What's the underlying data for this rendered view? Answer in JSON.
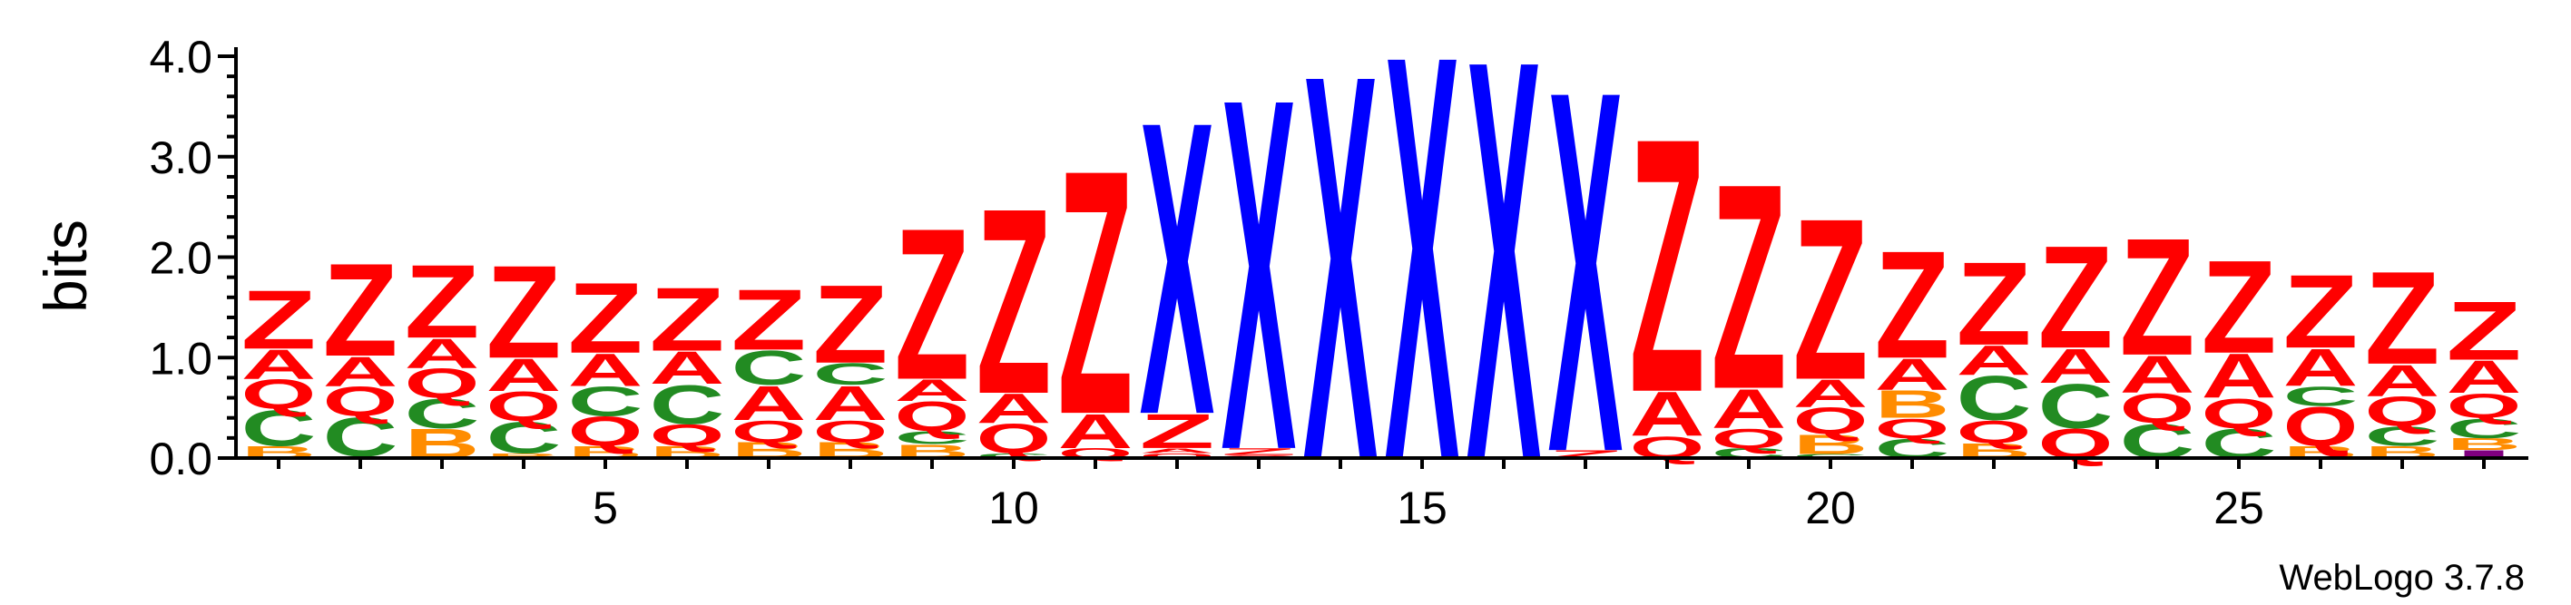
{
  "chart_data": {
    "type": "sequence-logo",
    "ylabel": "bits",
    "ylim": [
      0,
      4.0
    ],
    "yticks": [
      "0.0",
      "1.0",
      "2.0",
      "3.0",
      "4.0"
    ],
    "xticks": [
      5,
      10,
      15,
      20,
      25
    ],
    "positions": 28,
    "credit": "WebLogo 3.7.8",
    "colors": {
      "Z": "#ff0000",
      "A": "#ff0000",
      "Q": "#ff0000",
      "X": "#0000ff",
      "C": "#228b22",
      "B": "#ff8c00",
      "I": "#800080"
    },
    "stacks": [
      [
        [
          "B",
          0.12
        ],
        [
          "C",
          0.37
        ],
        [
          "Q",
          0.3
        ],
        [
          "A",
          0.3
        ],
        [
          "Z",
          0.6
        ]
      ],
      [
        [
          "B",
          0.02
        ],
        [
          "C",
          0.4
        ],
        [
          "Q",
          0.3
        ],
        [
          "A",
          0.3
        ],
        [
          "Z",
          0.95
        ]
      ],
      [
        [
          "B",
          0.3
        ],
        [
          "C",
          0.3
        ],
        [
          "Q",
          0.3
        ],
        [
          "A",
          0.3
        ],
        [
          "Z",
          0.75
        ]
      ],
      [
        [
          "B",
          0.05
        ],
        [
          "C",
          0.32
        ],
        [
          "Q",
          0.3
        ],
        [
          "A",
          0.33
        ],
        [
          "Z",
          0.95
        ]
      ],
      [
        [
          "B",
          0.12
        ],
        [
          "Q",
          0.3
        ],
        [
          "C",
          0.3
        ],
        [
          "A",
          0.33
        ],
        [
          "Z",
          0.72
        ]
      ],
      [
        [
          "B",
          0.12
        ],
        [
          "Q",
          0.22
        ],
        [
          "C",
          0.4
        ],
        [
          "A",
          0.33
        ],
        [
          "Z",
          0.65
        ]
      ],
      [
        [
          "B",
          0.16
        ],
        [
          "Q",
          0.22
        ],
        [
          "A",
          0.35
        ],
        [
          "C",
          0.35
        ],
        [
          "Z",
          0.62
        ]
      ],
      [
        [
          "B",
          0.16
        ],
        [
          "Q",
          0.22
        ],
        [
          "A",
          0.35
        ],
        [
          "C",
          0.22
        ],
        [
          "Z",
          0.8
        ]
      ],
      [
        [
          "B",
          0.14
        ],
        [
          "C",
          0.13
        ],
        [
          "Q",
          0.3
        ],
        [
          "A",
          0.22
        ],
        [
          "Z",
          1.55
        ]
      ],
      [
        [
          "C",
          0.05
        ],
        [
          "Q",
          0.3
        ],
        [
          "A",
          0.3
        ],
        [
          "Z",
          1.9
        ]
      ],
      [
        [
          "Q",
          0.1
        ],
        [
          "A",
          0.35
        ],
        [
          "Z",
          2.5
        ]
      ],
      [
        [
          "Q",
          0.05
        ],
        [
          "A",
          0.05
        ],
        [
          "Z",
          0.35
        ],
        [
          "X",
          3.0
        ]
      ],
      [
        [
          "Q",
          0.03
        ],
        [
          "Z",
          0.07
        ],
        [
          "X",
          3.6
        ]
      ],
      [
        [
          "X",
          3.95
        ]
      ],
      [
        [
          "X",
          4.15
        ]
      ],
      [
        [
          "X",
          4.1
        ]
      ],
      [
        [
          "Z",
          0.08
        ],
        [
          "X",
          3.7
        ]
      ],
      [
        [
          "Q",
          0.22
        ],
        [
          "A",
          0.45
        ],
        [
          "Z",
          2.6
        ]
      ],
      [
        [
          "C",
          0.1
        ],
        [
          "Q",
          0.2
        ],
        [
          "A",
          0.4
        ],
        [
          "Z",
          2.1
        ]
      ],
      [
        [
          "C",
          0.04
        ],
        [
          "B",
          0.2
        ],
        [
          "Q",
          0.27
        ],
        [
          "A",
          0.28
        ],
        [
          "Z",
          1.65
        ]
      ],
      [
        [
          "C",
          0.2
        ],
        [
          "Q",
          0.2
        ],
        [
          "B",
          0.28
        ],
        [
          "A",
          0.32
        ],
        [
          "Z",
          1.1
        ]
      ],
      [
        [
          "B",
          0.15
        ],
        [
          "Q",
          0.23
        ],
        [
          "C",
          0.45
        ],
        [
          "A",
          0.3
        ],
        [
          "Z",
          0.85
        ]
      ],
      [
        [
          "Q",
          0.3
        ],
        [
          "C",
          0.45
        ],
        [
          "A",
          0.35
        ],
        [
          "Z",
          1.05
        ]
      ],
      [
        [
          "C",
          0.35
        ],
        [
          "Q",
          0.3
        ],
        [
          "A",
          0.38
        ],
        [
          "Z",
          1.2
        ]
      ],
      [
        [
          "C",
          0.3
        ],
        [
          "Q",
          0.3
        ],
        [
          "A",
          0.45
        ],
        [
          "Z",
          0.95
        ]
      ],
      [
        [
          "B",
          0.12
        ],
        [
          "Q",
          0.4
        ],
        [
          "C",
          0.2
        ],
        [
          "A",
          0.38
        ],
        [
          "Z",
          0.75
        ]
      ],
      [
        [
          "B",
          0.12
        ],
        [
          "C",
          0.2
        ],
        [
          "Q",
          0.3
        ],
        [
          "A",
          0.32
        ],
        [
          "Z",
          0.95
        ]
      ],
      [
        [
          "I",
          0.08
        ],
        [
          "B",
          0.12
        ],
        [
          "C",
          0.2
        ],
        [
          "Q",
          0.25
        ],
        [
          "A",
          0.33
        ],
        [
          "Z",
          0.6
        ]
      ]
    ]
  }
}
